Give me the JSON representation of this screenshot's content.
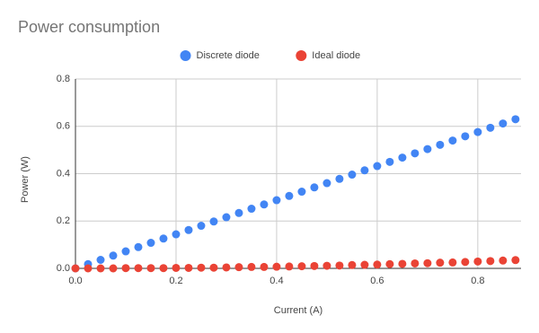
{
  "chart_data": {
    "type": "scatter",
    "title": "Power consumption",
    "x_label": "Current (A)",
    "y_label": "Power (W)",
    "x": [
      0,
      0.025,
      0.05,
      0.075,
      0.1,
      0.125,
      0.15,
      0.175,
      0.2,
      0.225,
      0.25,
      0.275,
      0.3,
      0.325,
      0.35,
      0.375,
      0.4,
      0.425,
      0.45,
      0.475,
      0.5,
      0.525,
      0.55,
      0.575,
      0.6,
      0.625,
      0.65,
      0.675,
      0.7,
      0.725,
      0.75,
      0.775,
      0.8,
      0.825,
      0.85,
      0.875
    ],
    "series": [
      {
        "name": "Discrete diode",
        "color": "#4285f4",
        "values": [
          0,
          0.018,
          0.036,
          0.054,
          0.072,
          0.09,
          0.108,
          0.126,
          0.144,
          0.162,
          0.18,
          0.198,
          0.216,
          0.234,
          0.252,
          0.27,
          0.288,
          0.306,
          0.324,
          0.342,
          0.36,
          0.378,
          0.396,
          0.414,
          0.432,
          0.45,
          0.468,
          0.486,
          0.504,
          0.522,
          0.54,
          0.558,
          0.576,
          0.594,
          0.612,
          0.63
        ]
      },
      {
        "name": "Ideal diode",
        "color": "#ea4335",
        "values": [
          0,
          0,
          0,
          0,
          0.001,
          0.001,
          0.001,
          0.001,
          0.002,
          0.002,
          0.003,
          0.003,
          0.004,
          0.005,
          0.006,
          0.006,
          0.007,
          0.008,
          0.009,
          0.01,
          0.011,
          0.012,
          0.014,
          0.015,
          0.016,
          0.018,
          0.019,
          0.021,
          0.022,
          0.024,
          0.025,
          0.027,
          0.029,
          0.031,
          0.033,
          0.035
        ]
      }
    ],
    "xlim": [
      0,
      0.886
    ],
    "xticks": [
      {
        "value": 0,
        "label": "0.0"
      },
      0.2,
      0.4,
      0.6,
      0.8
    ],
    "ylim": [
      0,
      0.8
    ],
    "yticks": [
      {
        "value": 0,
        "label": "0.0"
      },
      0.2,
      0.4,
      0.6,
      0.8
    ],
    "grid": true,
    "legend": "top"
  }
}
